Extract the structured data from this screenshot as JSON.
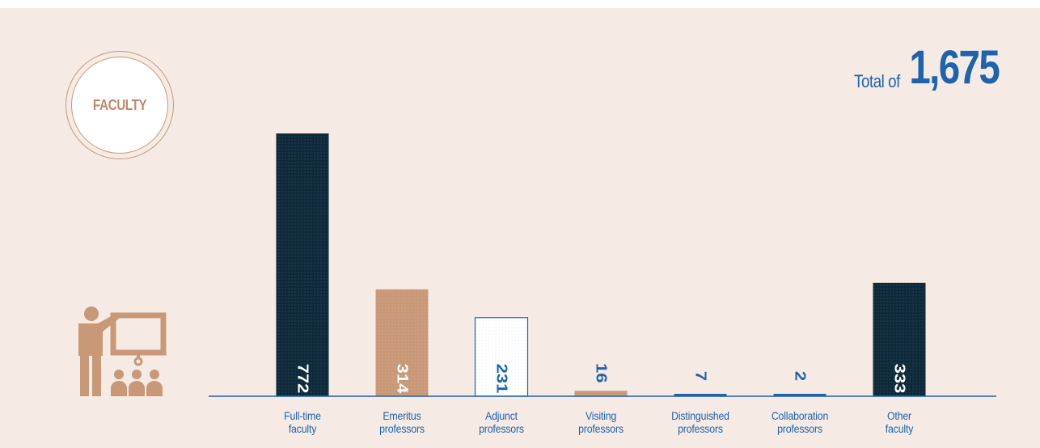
{
  "badge": {
    "label": "FACULTY"
  },
  "total": {
    "prefix": "Total of",
    "value": "1,675"
  },
  "icon": {
    "name": "teacher-presentation-icon",
    "color": "#c89877"
  },
  "colors": {
    "dark": "#0e2a3a",
    "tan": "#c89877",
    "blue": "#1d63ad",
    "background": "#f5ebe4"
  },
  "chart_data": {
    "type": "bar",
    "title": "",
    "xlabel": "",
    "ylabel": "",
    "ylim": [
      0,
      772
    ],
    "grid": false,
    "legend": "none",
    "categories": [
      [
        "Full-time",
        "faculty"
      ],
      [
        "Emeritus",
        "professors"
      ],
      [
        "Adjunct",
        "professors"
      ],
      [
        "Visiting",
        "professors"
      ],
      [
        "Distinguished",
        "professors"
      ],
      [
        "Collaboration",
        "professors"
      ],
      [
        "Other",
        "faculty"
      ]
    ],
    "values": [
      772,
      314,
      231,
      16,
      7,
      2,
      333
    ],
    "value_labels": [
      "772",
      "314",
      "231",
      "16",
      "7",
      "2",
      "333"
    ],
    "styles": [
      "dark",
      "tan",
      "outline",
      "tan",
      "blue",
      "blue",
      "dark"
    ]
  }
}
